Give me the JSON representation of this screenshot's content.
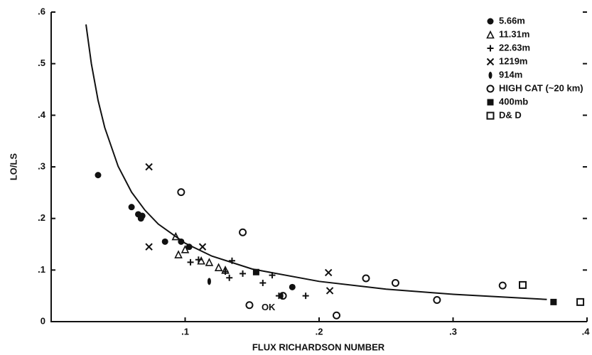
{
  "chart_data": {
    "type": "scatter",
    "xlabel": "FLUX RICHARDSON NUMBER",
    "ylabel": "LO/LS",
    "xlim": [
      0,
      0.4
    ],
    "ylim": [
      0,
      0.6
    ],
    "xticks": [
      {
        "value": 0.1,
        "label": ".1"
      },
      {
        "value": 0.2,
        "label": ".2"
      },
      {
        "value": 0.3,
        "label": ".3"
      },
      {
        "value": 0.4,
        "label": ".4"
      }
    ],
    "yticks": [
      0,
      {
        "value": 0.1,
        "label": ".1"
      },
      {
        "value": 0.2,
        "label": ".2"
      },
      {
        "value": 0.3,
        "label": ".3"
      },
      {
        "value": 0.4,
        "label": ".4"
      },
      {
        "value": 0.5,
        "label": ".5"
      },
      {
        "value": 0.6,
        "label": ".6"
      }
    ],
    "legend": "upper right",
    "annotations": [
      {
        "text": "OK",
        "x": 0.157,
        "y": 0.027
      }
    ],
    "curve": {
      "color": "#111",
      "x": [
        0.026,
        0.03,
        0.035,
        0.04,
        0.05,
        0.06,
        0.07,
        0.08,
        0.1,
        0.12,
        0.15,
        0.2,
        0.25,
        0.3,
        0.37
      ],
      "y": [
        0.576,
        0.5,
        0.429,
        0.376,
        0.301,
        0.251,
        0.216,
        0.189,
        0.152,
        0.127,
        0.102,
        0.078,
        0.063,
        0.053,
        0.043
      ]
    },
    "series": [
      {
        "name": "5.66m",
        "marker": "dot",
        "color": "#111",
        "x": [
          0.035,
          0.06,
          0.065,
          0.068,
          0.067,
          0.085,
          0.097,
          0.103,
          0.18
        ],
        "values": [
          0.284,
          0.222,
          0.208,
          0.205,
          0.2,
          0.155,
          0.155,
          0.145,
          0.067
        ]
      },
      {
        "name": "11.31m",
        "marker": "triangle",
        "color": "#111",
        "x": [
          0.093,
          0.095,
          0.1,
          0.112,
          0.118,
          0.125,
          0.13
        ],
        "values": [
          0.165,
          0.13,
          0.14,
          0.118,
          0.115,
          0.105,
          0.1
        ]
      },
      {
        "name": "22.63m",
        "marker": "plus",
        "color": "#111",
        "x": [
          0.104,
          0.11,
          0.13,
          0.133,
          0.135,
          0.143,
          0.158,
          0.165,
          0.17,
          0.19
        ],
        "values": [
          0.115,
          0.12,
          0.097,
          0.085,
          0.118,
          0.093,
          0.075,
          0.09,
          0.05,
          0.05
        ]
      },
      {
        "name": "1219m",
        "marker": "cross",
        "color": "#111",
        "x": [
          0.073,
          0.073,
          0.113,
          0.207,
          0.208
        ],
        "values": [
          0.3,
          0.145,
          0.145,
          0.095,
          0.06
        ]
      },
      {
        "name": "914m",
        "marker": "diamond",
        "color": "#111",
        "x": [
          0.118,
          0.172
        ],
        "values": [
          0.078,
          0.05
        ]
      },
      {
        "name": "HIGH CAT (~20 km)",
        "marker": "circle",
        "color": "#111",
        "x": [
          0.097,
          0.143,
          0.148,
          0.173,
          0.213,
          0.235,
          0.257,
          0.288,
          0.337
        ],
        "values": [
          0.251,
          0.173,
          0.032,
          0.05,
          0.012,
          0.084,
          0.075,
          0.042,
          0.07
        ]
      },
      {
        "name": "400mb",
        "marker": "square",
        "color": "#111",
        "x": [
          0.153,
          0.375
        ],
        "values": [
          0.096,
          0.038
        ]
      },
      {
        "name": "D& D",
        "marker": "opensquare",
        "color": "#111",
        "x": [
          0.352,
          0.395
        ],
        "values": [
          0.071,
          0.038
        ]
      }
    ]
  }
}
